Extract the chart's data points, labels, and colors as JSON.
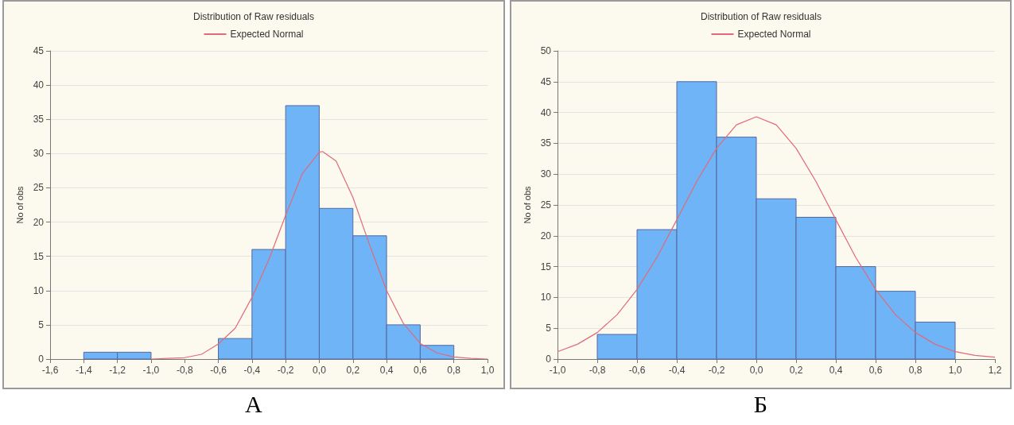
{
  "chart_data": [
    {
      "type": "histogram",
      "title": "Distribution of Raw residuals",
      "ylabel": "No of obs",
      "annotations": [
        "A"
      ],
      "legend": "top",
      "grid": "y",
      "marker": "none",
      "xlim": [
        -1.6,
        1.0
      ],
      "xticks": [
        {
          "value": -1.6,
          "label": "-1,6"
        },
        {
          "value": -1.4,
          "label": "-1,4"
        },
        {
          "value": -1.2,
          "label": "-1,2"
        },
        {
          "value": -1.0,
          "label": "-1,0"
        },
        {
          "value": -0.8,
          "label": "-0,8"
        },
        {
          "value": -0.6,
          "label": "-0,6"
        },
        {
          "value": -0.4,
          "label": "-0,4"
        },
        {
          "value": -0.2,
          "label": "-0,2"
        },
        {
          "value": 0,
          "label": "0,0"
        },
        {
          "value": 0.2,
          "label": "0,2"
        },
        {
          "value": 0.4,
          "label": "0,4"
        },
        {
          "value": 0.6,
          "label": "0,6"
        },
        {
          "value": 0.8,
          "label": "0,8"
        },
        {
          "value": 1.0,
          "label": "1,0"
        }
      ],
      "ylim": [
        0,
        45
      ],
      "yticks": [
        0,
        5,
        10,
        15,
        20,
        25,
        30,
        35,
        40,
        45
      ],
      "series": [
        {
          "color": "#6fb4f6",
          "bins": [
            -1.4,
            -1.2,
            -1.0,
            -0.8,
            -0.6,
            -0.4,
            -0.2,
            0,
            0.2,
            0.4,
            0.6,
            0.8
          ],
          "values": [
            1,
            1,
            0,
            0,
            3,
            16,
            37,
            22,
            18,
            5,
            2
          ]
        },
        {
          "type": "line",
          "name": "Expected Normal",
          "color": "#e06a78",
          "x": [
            -1.0,
            -0.9,
            -0.8,
            -0.7,
            -0.6,
            -0.5,
            -0.4,
            -0.3,
            -0.2,
            -0.1,
            0,
            0.02,
            0.1,
            0.2,
            0.3,
            0.4,
            0.5,
            0.6,
            0.7,
            0.8,
            0.9,
            1.0
          ],
          "values": [
            0,
            0.1,
            0.2,
            0.7,
            2.2,
            4.5,
            9,
            14.5,
            21,
            27.1,
            30.2,
            30.3,
            28.9,
            23.6,
            16.6,
            10,
            5.2,
            2.3,
            0.9,
            0.3,
            0.1,
            0
          ]
        }
      ]
    },
    {
      "type": "histogram",
      "title": "Distribution of Raw residuals",
      "ylabel": "No of obs",
      "annotations": [
        "Б"
      ],
      "legend": "top",
      "grid": "y",
      "marker": "none",
      "xlim": [
        -1.0,
        1.2
      ],
      "xticks": [
        {
          "value": -1.0,
          "label": "-1,0"
        },
        {
          "value": -0.8,
          "label": "-0,8"
        },
        {
          "value": -0.6,
          "label": "-0,6"
        },
        {
          "value": -0.4,
          "label": "-0,4"
        },
        {
          "value": -0.2,
          "label": "-0,2"
        },
        {
          "value": 0,
          "label": "0,0"
        },
        {
          "value": 0.2,
          "label": "0,2"
        },
        {
          "value": 0.4,
          "label": "0,4"
        },
        {
          "value": 0.6,
          "label": "0,6"
        },
        {
          "value": 0.8,
          "label": "0,8"
        },
        {
          "value": 1.0,
          "label": "1,0"
        },
        {
          "value": 1.2,
          "label": "1,2"
        }
      ],
      "ylim": [
        0,
        50
      ],
      "yticks": [
        0,
        5,
        10,
        15,
        20,
        25,
        30,
        35,
        40,
        45,
        50
      ],
      "series": [
        {
          "color": "#6fb4f6",
          "bins": [
            -0.8,
            -0.6,
            -0.4,
            -0.2,
            0,
            0.2,
            0.4,
            0.6,
            0.8,
            1.0
          ],
          "values": [
            4,
            21,
            45,
            36,
            26,
            23,
            15,
            11,
            6
          ]
        },
        {
          "type": "line",
          "name": "Expected Normal",
          "color": "#e06a78",
          "x": [
            -1.0,
            -0.9,
            -0.8,
            -0.7,
            -0.6,
            -0.5,
            -0.4,
            -0.3,
            -0.2,
            -0.1,
            0,
            0.1,
            0.2,
            0.3,
            0.4,
            0.5,
            0.6,
            0.7,
            0.8,
            0.9,
            1.0,
            1.1,
            1.2
          ],
          "values": [
            1.2,
            2.4,
            4.3,
            7.2,
            11.3,
            16.5,
            22.6,
            28.8,
            34.2,
            38,
            39.3,
            38,
            34.2,
            28.8,
            22.6,
            16.5,
            11.3,
            7.2,
            4.3,
            2.4,
            1.2,
            0.6,
            0.3
          ]
        }
      ]
    }
  ]
}
